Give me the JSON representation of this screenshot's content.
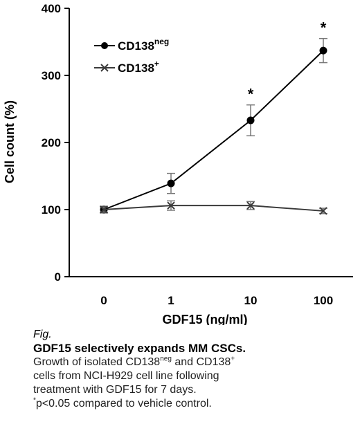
{
  "chart_data": {
    "type": "line",
    "categories": [
      "0",
      "1",
      "10",
      "100"
    ],
    "series": [
      {
        "name": "CD138",
        "name_sup": "neg",
        "marker": "circle",
        "color": "#000000",
        "values": [
          100,
          139,
          233,
          337
        ],
        "errors": [
          5,
          15,
          23,
          18
        ],
        "significance": [
          "",
          "",
          "*",
          "*"
        ]
      },
      {
        "name": "CD138",
        "name_sup": "+",
        "marker": "x",
        "color": "#3a3a3a",
        "values": [
          100,
          106,
          106,
          98
        ],
        "errors": [
          4,
          7,
          6,
          4
        ],
        "significance": [
          "",
          "",
          "",
          ""
        ]
      }
    ],
    "xlabel": "GDF15 (ng/ml)",
    "ylabel": "Cell count (%)",
    "ylim": [
      0,
      400
    ],
    "yticks": [
      0,
      100,
      200,
      300,
      400
    ],
    "legend_position": "top-left",
    "grid": false
  },
  "caption": {
    "fig_label": "Fig.",
    "title": "GDF15 selectively expands MM CSCs.",
    "line1_a": "Growth of isolated CD138",
    "line1_sup1": "neg",
    "line1_b": " and CD138",
    "line1_sup2": "+",
    "line2": "cells from NCI-H929 cell line following",
    "line3": "treatment with GDF15 for 7 days.",
    "line4_sup": "*",
    "line4": "p<0.05 compared to vehicle control."
  }
}
